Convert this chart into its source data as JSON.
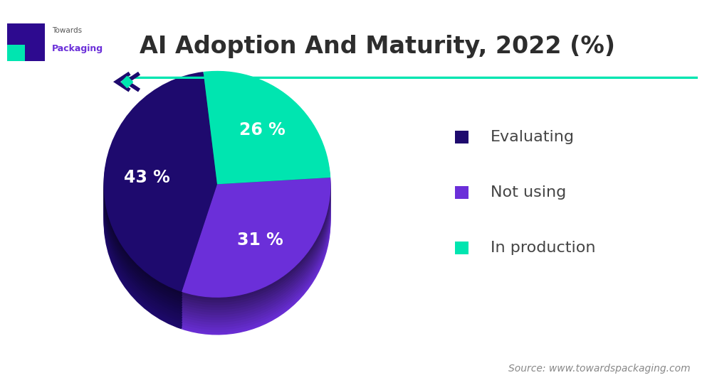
{
  "title": "AI Adoption And Maturity, 2022 (%)",
  "slices": [
    43,
    31,
    26
  ],
  "labels": [
    "Evaluating",
    "Not using",
    "In production"
  ],
  "colors": [
    "#1e0a6e",
    "#6b2fd9",
    "#00e5b0"
  ],
  "shadow_colors": [
    "#160850",
    "#4a1e99",
    "#00a07a"
  ],
  "pct_labels": [
    "43 %",
    "31 %",
    "26 %"
  ],
  "legend_labels": [
    "Evaluating",
    "Not using",
    "In production"
  ],
  "source_text": "Source: www.towardspackaging.com",
  "title_fontsize": 24,
  "label_fontsize": 17,
  "legend_fontsize": 16,
  "source_fontsize": 10,
  "bg_color": "#ffffff",
  "text_color": "#444444",
  "title_color": "#2d2d2d",
  "accent_line_color": "#00e5b0",
  "startangle": 97
}
